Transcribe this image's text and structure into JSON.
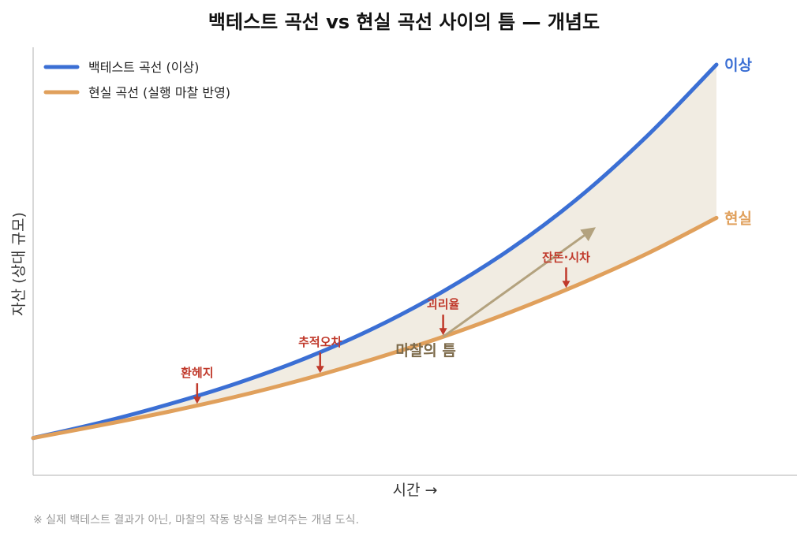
{
  "chart_data": {
    "type": "line",
    "title": "백테스트 곡선 vs 현실 곡선 사이의 틈 — 개념도",
    "xlabel": "시간 →",
    "ylabel": "자산 (상대 규모)",
    "x": [
      0,
      10,
      20,
      30,
      40,
      50,
      60,
      70,
      80,
      90,
      100
    ],
    "xlim": [
      0,
      100
    ],
    "ylim": [
      0,
      100
    ],
    "grid": false,
    "legend_position": "top-left",
    "series": [
      {
        "name": "백테스트 곡선 (이상)",
        "end_label": "이상",
        "color": "#3b6fd4",
        "values": [
          4.5,
          8.5,
          13.2,
          18.6,
          25.0,
          32.7,
          42.0,
          53.0,
          66.2,
          82.0,
          100.0
        ]
      },
      {
        "name": "현실 곡선 (실행 마찰 반영)",
        "end_label": "현실",
        "color": "#e0a05c",
        "values": [
          4.5,
          7.8,
          11.3,
          15.2,
          19.7,
          24.8,
          30.4,
          36.8,
          43.9,
          51.8,
          60.8
        ]
      }
    ],
    "gap_label": "마찰의 틈",
    "gap_color": "#f1ece2",
    "annotations": [
      {
        "text": "환헤지",
        "x": 24,
        "color": "#c0392b"
      },
      {
        "text": "추적오차",
        "x": 42,
        "color": "#c0392b"
      },
      {
        "text": "괴리율",
        "x": 60,
        "color": "#c0392b"
      },
      {
        "text": "잔돈·시차",
        "x": 78,
        "color": "#c0392b"
      }
    ],
    "trend_arrow": {
      "from": [
        60,
        30.4
      ],
      "to": [
        82,
        58
      ],
      "color": "#b3a27e"
    }
  },
  "footnote": "※ 실제 백테스트 결과가 아닌, 마찰의 작동 방식을 보여주는 개념 도식."
}
